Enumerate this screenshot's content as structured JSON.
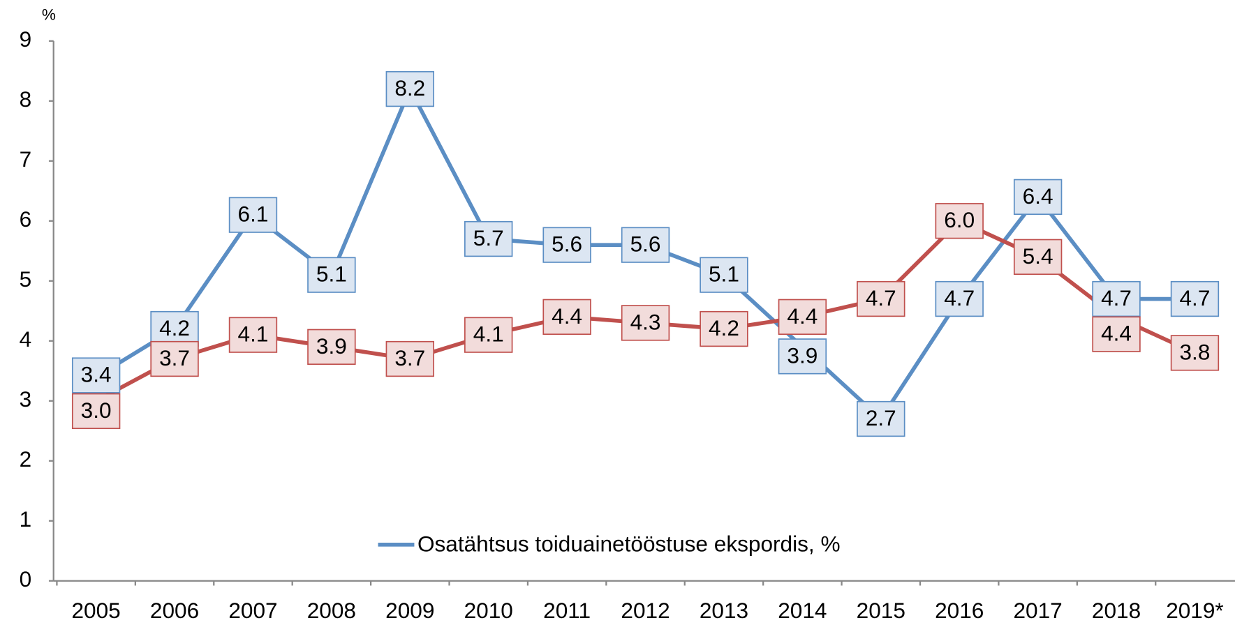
{
  "chart_data": {
    "type": "line",
    "y_label": "%",
    "categories": [
      "2005",
      "2006",
      "2007",
      "2008",
      "2009",
      "2010",
      "2011",
      "2012",
      "2013",
      "2014",
      "2015",
      "2016",
      "2017",
      "2018",
      "2019*"
    ],
    "series": [
      {
        "name": "Osatähtsus toiduainetööstuse ekspordis, %",
        "color": "#5b8ec4",
        "label_fill": "#dce6f2",
        "values": [
          3.4,
          4.2,
          6.1,
          5.1,
          8.2,
          5.7,
          5.6,
          5.6,
          5.1,
          3.9,
          2.7,
          4.7,
          6.4,
          4.7,
          4.7
        ],
        "value_labels": [
          "3.4",
          "4.2",
          "6.1",
          "5.1",
          "8.2",
          "5.7",
          "5.6",
          "5.6",
          "5.1",
          "3.9",
          "2.7",
          "4.7",
          "6.4",
          "4.7",
          "4.7"
        ]
      },
      {
        "color": "#c0504d",
        "label_fill": "#f2dcdb",
        "values": [
          3.0,
          3.7,
          4.1,
          3.9,
          3.7,
          4.1,
          4.4,
          4.3,
          4.2,
          4.4,
          4.7,
          6.0,
          5.4,
          4.4,
          3.8
        ],
        "value_labels": [
          "3.0",
          "3.7",
          "4.1",
          "3.9",
          "3.7",
          "4.1",
          "4.4",
          "4.3",
          "4.2",
          "4.4",
          "4.7",
          "6.0",
          "5.4",
          "4.4",
          "3.8"
        ]
      }
    ],
    "ylim": [
      0,
      9
    ],
    "yticks": [
      0,
      1,
      2,
      3,
      4,
      5,
      6,
      7,
      8,
      9
    ],
    "grid": false,
    "legend": "bottom"
  }
}
